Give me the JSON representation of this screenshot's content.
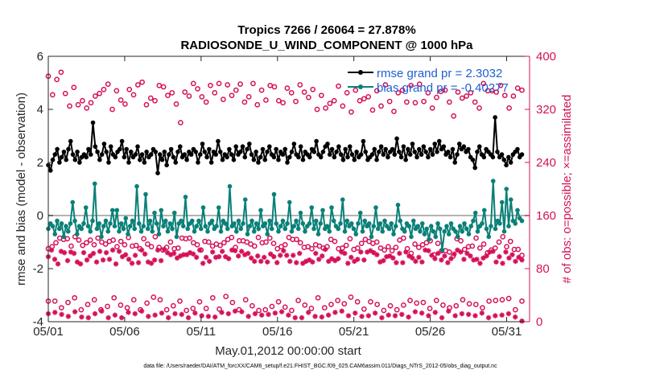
{
  "chart_data": {
    "type": "line",
    "title_line1": "Tropics 7266 / 26064 = 27.878%",
    "title_line2": "RADIOSONDE_U_WIND_COMPONENT @ 1000 hPa",
    "xlabel": "May.01,2012 00:00:00 start",
    "ylabel_left": "rmse and bias (model - observation)",
    "ylabel_right": "# of obs: o=possible; ×=assimilated",
    "footer": "data file: /Users/raeder/DAI/ATM_forcXX/CAM6_setup/f.e21.FHIST_BGC.f09_025.CAM6assim.011/Diags_NTrS_2012-05/obs_diag_output.nc",
    "x_ticks": [
      "05/01",
      "05/06",
      "05/11",
      "05/16",
      "05/21",
      "05/26",
      "05/31"
    ],
    "x_tick_days": [
      1,
      6,
      11,
      16,
      21,
      26,
      31
    ],
    "xlim": [
      1,
      32.5
    ],
    "ylim_left": [
      -4,
      6
    ],
    "y_ticks_left": [
      "-4",
      "-2",
      "0",
      "2",
      "4",
      "6"
    ],
    "ylim_right": [
      0,
      400
    ],
    "y_ticks_right": [
      "0",
      "80",
      "160",
      "240",
      "320",
      "400"
    ],
    "legend": [
      {
        "label": "rmse grand pr = 2.3032",
        "color": "#000000"
      },
      {
        "label": "bias grand pr = -0.40277",
        "color": "#008080"
      }
    ],
    "colors": {
      "rmse": "#000000",
      "bias": "#0a8078",
      "obs": "#d41159",
      "zero_line": "#b3b3b3"
    },
    "series": [
      {
        "name": "rmse",
        "axis": "left",
        "values": [
          1.9,
          1.7,
          2.1,
          2.3,
          2.5,
          2.0,
          2.2,
          2.4,
          2.1,
          2.5,
          2.8,
          2.3,
          2.1,
          2.4,
          2.0,
          2.2,
          2.3,
          2.2,
          2.5,
          2.3,
          3.5,
          2.6,
          2.4,
          2.1,
          2.3,
          2.7,
          2.4,
          2.0,
          2.6,
          2.3,
          2.2,
          2.4,
          2.5,
          2.8,
          2.2,
          2.5,
          2.0,
          2.4,
          2.2,
          2.3,
          2.6,
          2.1,
          2.3,
          2.0,
          2.4,
          2.2,
          2.3,
          2.5,
          2.4,
          1.6,
          2.3,
          2.1,
          2.4,
          1.9,
          2.3,
          2.5,
          2.2,
          2.0,
          2.4,
          2.6,
          2.2,
          2.3,
          2.1,
          2.4,
          2.3,
          2.5,
          2.4,
          2.0,
          2.3,
          2.7,
          2.4,
          2.2,
          2.5,
          2.0,
          2.4,
          2.3,
          2.8,
          2.4,
          2.1,
          2.3,
          2.2,
          2.5,
          2.3,
          2.1,
          2.6,
          2.3,
          2.4,
          2.6,
          2.2,
          2.5,
          2.7,
          2.3,
          2.1,
          2.4,
          2.0,
          2.2,
          2.5,
          2.1,
          2.4,
          2.6,
          2.3,
          2.2,
          2.5,
          2.1,
          2.4,
          2.3,
          2.5,
          2.0,
          2.2,
          2.4,
          2.7,
          2.3,
          2.2,
          2.6,
          2.1,
          2.4,
          2.3,
          2.2,
          2.5,
          2.4,
          2.8,
          2.3,
          2.2,
          2.4,
          2.6,
          2.7,
          2.3,
          2.5,
          2.2,
          2.4,
          2.6,
          2.3,
          2.1,
          2.5,
          2.2,
          2.6,
          2.3,
          2.1,
          2.4,
          2.2,
          2.3,
          2.8,
          2.4,
          2.1,
          2.2,
          2.3,
          2.5,
          2.1,
          2.4,
          2.6,
          2.3,
          2.5,
          2.2,
          2.4,
          2.5,
          2.3,
          2.9,
          2.4,
          2.2,
          2.6,
          2.1,
          2.5,
          2.3,
          2.7,
          2.4,
          2.2,
          2.5,
          2.3,
          2.6,
          2.4,
          2.2,
          2.5,
          2.3,
          2.7,
          2.4,
          2.8,
          2.5,
          2.6,
          2.3,
          2.4,
          2.2,
          2.5,
          2.0,
          2.3,
          2.7,
          2.5,
          2.6,
          2.4,
          2.5,
          2.2,
          2.1,
          1.8,
          2.4,
          2.6,
          2.3,
          2.2,
          2.5,
          2.4,
          2.3,
          2.2,
          3.7,
          2.4,
          2.2,
          2.3,
          2.1,
          1.9,
          2.2,
          2.0,
          2.3,
          2.4,
          2.5,
          2.2,
          2.3
        ]
      },
      {
        "name": "bias",
        "axis": "left",
        "values": [
          -0.5,
          -0.3,
          -0.4,
          -0.7,
          -0.2,
          -0.5,
          -0.3,
          -0.8,
          -0.4,
          -0.6,
          -0.3,
          0.5,
          -0.2,
          -0.7,
          -0.4,
          -0.5,
          -0.3,
          0.3,
          -0.4,
          -0.6,
          -0.2,
          1.2,
          -0.5,
          -0.3,
          -0.8,
          -0.4,
          -0.2,
          -0.6,
          -0.3,
          0.2,
          -0.4,
          0.2,
          -0.6,
          -0.3,
          -0.5,
          -0.1,
          -0.7,
          -0.4,
          -0.2,
          -0.5,
          1.1,
          -0.3,
          -0.6,
          -0.4,
          0.8,
          -0.5,
          -0.2,
          -0.6,
          0.1,
          -0.3,
          -0.7,
          0.2,
          -0.4,
          -0.2,
          -0.6,
          -0.3,
          -0.5,
          0.1,
          -0.8,
          -0.3,
          -0.2,
          -0.4,
          0.7,
          -0.5,
          -0.3,
          -0.2,
          -0.6,
          -0.4,
          -0.2,
          -0.5,
          0.3,
          -0.4,
          -0.6,
          -0.3,
          -0.2,
          -0.5,
          -0.4,
          0.3,
          -0.6,
          -0.2,
          -0.3,
          -0.5,
          1.1,
          -0.4,
          -0.3,
          -0.6,
          -0.2,
          -0.5,
          -0.3,
          0.6,
          -0.7,
          -0.4,
          -0.2,
          -0.6,
          -0.3,
          -0.5,
          0.2,
          -0.4,
          -0.3,
          -0.7,
          -0.2,
          -0.5,
          0.8,
          -0.3,
          -0.6,
          -0.4,
          -0.2,
          -0.5,
          -0.3,
          0.5,
          -0.6,
          -0.4,
          -0.2,
          -0.5,
          0.1,
          -0.3,
          -0.6,
          -0.4,
          -0.3,
          0.3,
          -0.5,
          -0.2,
          -0.7,
          -0.3,
          0.2,
          -0.5,
          -0.4,
          -0.6,
          0.3,
          -0.2,
          -0.4,
          -0.5,
          -0.3,
          0.6,
          -0.6,
          -0.2,
          -0.4,
          -0.3,
          -0.5,
          -0.7,
          -0.3,
          0.1,
          -0.6,
          -0.2,
          -0.4,
          -0.3,
          -0.8,
          -0.4,
          0.3,
          -0.5,
          -0.3,
          -0.6,
          -0.2,
          -0.4,
          -0.5,
          -0.3,
          -0.7,
          -0.4,
          0.4,
          -0.2,
          -0.5,
          -0.6,
          -0.3,
          -0.4,
          -0.8,
          -0.2,
          -0.5,
          -0.4,
          -0.6,
          -0.3,
          -0.7,
          -0.5,
          -0.9,
          -0.4,
          -0.6,
          -0.8,
          -0.3,
          -0.5,
          -1.3,
          -0.6,
          -0.4,
          -0.7,
          -0.3,
          -0.5,
          -0.6,
          -0.8,
          -0.4,
          -0.6,
          -0.3,
          -0.5,
          -0.7,
          -0.4,
          -0.2,
          0.1,
          -0.6,
          -0.4,
          -0.3,
          0.2,
          -0.5,
          -0.8,
          -0.4,
          1.3,
          -0.5,
          -0.2,
          -0.3,
          0.5,
          -0.6,
          1.0,
          -0.4,
          0.6,
          -0.2,
          -0.3,
          0.2,
          -0.1,
          -0.2
        ]
      },
      {
        "name": "obs_possible_upper",
        "axis": "right",
        "marker": "o",
        "values": [
          370,
          342,
          365,
          376,
          344,
          325,
          353,
          327,
          333,
          322,
          330,
          340,
          344,
          350,
          358,
          320,
          348,
          334,
          328,
          350,
          342,
          357,
          361,
          327,
          337,
          333,
          356,
          354,
          341,
          345,
          328,
          300,
          346,
          340,
          359,
          351,
          339,
          331,
          356,
          345,
          359,
          335,
          357,
          341,
          349,
          358,
          331,
          339,
          359,
          327,
          349,
          334,
          356,
          354,
          333,
          330,
          352,
          345,
          332,
          357,
          346,
          338,
          350,
          320,
          341,
          322,
          329,
          333,
          355,
          325,
          345,
          316,
          349,
          333,
          336,
          339,
          319,
          348,
          325,
          357,
          332,
          317,
          345,
          349,
          331,
          356,
          330,
          358,
          332,
          345,
          322,
          338,
          347,
          349,
          331,
          310,
          346,
          337,
          340,
          345,
          331,
          322,
          359,
          348,
          348,
          346,
          356,
          341,
          322,
          340,
          352,
          349
        ]
      },
      {
        "name": "obs_possible_lower",
        "axis": "right",
        "marker": "o",
        "values": [
          110,
          113,
          119,
          126,
          124,
          125,
          114,
          128,
          123,
          115,
          119,
          123,
          116,
          126,
          120,
          117,
          121,
          123,
          113,
          121,
          116,
          127,
          114,
          115,
          110,
          125,
          117,
          113,
          128,
          112,
          108,
          112,
          120,
          110,
          111,
          126,
          125,
          126,
          119,
          116,
          108,
          121,
          120,
          114,
          117,
          115,
          119,
          124,
          127,
          112,
          122,
          122,
          120,
          117,
          114,
          127,
          119,
          120,
          126,
          118,
          110,
          113,
          116,
          127,
          124,
          124,
          119,
          112,
          113,
          110,
          116,
          114,
          111,
          113,
          124,
          121,
          110,
          111,
          115,
          125,
          109,
          111,
          118,
          124,
          121,
          118,
          120,
          111,
          108,
          113,
          107,
          112,
          123,
          126,
          110,
          103,
          117,
          112,
          116,
          119,
          122,
          101,
          118,
          107,
          107,
          105,
          99,
          125,
          122,
          109,
          113,
          114,
          126,
          111,
          117,
          104,
          108,
          111,
          120,
          128,
          113,
          121,
          109,
          109,
          100
        ]
      },
      {
        "name": "obs_assimilated_upper",
        "axis": "right",
        "marker": "*",
        "values": [
          98,
          108,
          94,
          87,
          106,
          104,
          92,
          105,
          103,
          90,
          87,
          104,
          93,
          99,
          103,
          90,
          106,
          93,
          104,
          94,
          108,
          87,
          106,
          98,
          101,
          94,
          88,
          100,
          89,
          108,
          102,
          90,
          88,
          93,
          108,
          92,
          109,
          104,
          101,
          103,
          96,
          99,
          101,
          101,
          104,
          102,
          97,
          108,
          88,
          97,
          91,
          105,
          97,
          98,
          106,
          98,
          95,
          108,
          107,
          99,
          106,
          101,
          103,
          96,
          91,
          99,
          91,
          97,
          90,
          102,
          98,
          89,
          100,
          107,
          100,
          91,
          100,
          89,
          103,
          88,
          91,
          93,
          90,
          103,
          94,
          99,
          109,
          91,
          95,
          92,
          95,
          105,
          103,
          88,
          97,
          91,
          94,
          105,
          93,
          105,
          107,
          104,
          101,
          90,
          92,
          98,
          99,
          96,
          89,
          103,
          89,
          105,
          99,
          96,
          91,
          97,
          90,
          108,
          107,
          100,
          95,
          103,
          93,
          99,
          89,
          95,
          102,
          108,
          105,
          94,
          103,
          99,
          93,
          94,
          88,
          96,
          99,
          105,
          106,
          90,
          98,
          88,
          105,
          96,
          101,
          91,
          97,
          93
        ]
      },
      {
        "name": "obs_possible_low",
        "axis": "right",
        "marker": "o",
        "values": [
          31,
          31,
          21,
          29,
          36,
          18,
          26,
          33,
          18,
          23,
          36,
          25,
          21,
          33,
          18,
          28,
          37,
          33,
          18,
          24,
          31,
          17,
          20,
          30,
          20,
          36,
          19,
          38,
          29,
          18,
          33,
          24,
          17,
          18,
          23,
          30,
          22,
          17,
          32,
          25,
          20,
          36,
          21,
          26,
          32,
          27,
          37,
          30,
          19,
          30,
          26,
          17,
          24,
          18,
          25,
          32,
          28,
          29,
          20,
          32,
          25,
          21,
          24,
          33,
          27,
          26,
          21,
          31,
          32,
          33,
          35,
          18,
          31
        ]
      },
      {
        "name": "obs_assimilated_low",
        "axis": "right",
        "marker": "*",
        "values": [
          12,
          14,
          11,
          8,
          15,
          7,
          6,
          12,
          16,
          6,
          10,
          6,
          14,
          12,
          16,
          8,
          10,
          13,
          6,
          12,
          11,
          6,
          13,
          9,
          8,
          7,
          14,
          12,
          16,
          15,
          8,
          12,
          10,
          11,
          13,
          15,
          10,
          6,
          6,
          14,
          8,
          7,
          10,
          14,
          16,
          9,
          13,
          8,
          9,
          13,
          6,
          10,
          9,
          11,
          7,
          15,
          13,
          9,
          14,
          6,
          16,
          9,
          12,
          11,
          9,
          13,
          6,
          9,
          10,
          12,
          7,
          1
        ]
      }
    ]
  }
}
